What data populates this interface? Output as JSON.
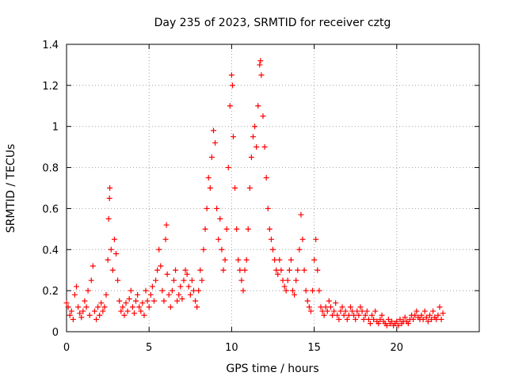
{
  "chart_data": {
    "type": "scatter",
    "title": "Day 235 of 2023, SRMTID for receiver cztg",
    "xlabel": "GPS time / hours",
    "ylabel": "SRMTID / TECUs",
    "xlim": [
      0,
      25
    ],
    "ylim": [
      0,
      1.4
    ],
    "xticks": [
      0,
      5,
      10,
      15,
      20
    ],
    "xtick_labels": [
      "0",
      "5",
      "10",
      "15",
      "20"
    ],
    "yticks": [
      0,
      0.2,
      0.4,
      0.6,
      0.8,
      1,
      1.2,
      1.4
    ],
    "ytick_labels": [
      "0",
      "0.2",
      "0.4",
      "0.6",
      "0.8",
      "1",
      "1.2",
      "1.4"
    ],
    "grid": true,
    "marker": "plus",
    "color": "#ff0000",
    "series": [
      {
        "name": "SRMTID",
        "points": [
          [
            0.0,
            0.14
          ],
          [
            0.1,
            0.12
          ],
          [
            0.2,
            0.08
          ],
          [
            0.3,
            0.1
          ],
          [
            0.4,
            0.06
          ],
          [
            0.5,
            0.18
          ],
          [
            0.6,
            0.22
          ],
          [
            0.7,
            0.12
          ],
          [
            0.8,
            0.09
          ],
          [
            0.9,
            0.07
          ],
          [
            1.0,
            0.1
          ],
          [
            1.1,
            0.15
          ],
          [
            1.2,
            0.12
          ],
          [
            1.3,
            0.2
          ],
          [
            1.4,
            0.08
          ],
          [
            1.5,
            0.25
          ],
          [
            1.6,
            0.32
          ],
          [
            1.7,
            0.1
          ],
          [
            1.8,
            0.06
          ],
          [
            1.9,
            0.12
          ],
          [
            2.0,
            0.08
          ],
          [
            2.1,
            0.14
          ],
          [
            2.2,
            0.1
          ],
          [
            2.3,
            0.12
          ],
          [
            2.4,
            0.18
          ],
          [
            2.5,
            0.35
          ],
          [
            2.55,
            0.55
          ],
          [
            2.6,
            0.65
          ],
          [
            2.62,
            0.7
          ],
          [
            2.7,
            0.4
          ],
          [
            2.8,
            0.3
          ],
          [
            2.9,
            0.45
          ],
          [
            3.0,
            0.38
          ],
          [
            3.1,
            0.25
          ],
          [
            3.2,
            0.15
          ],
          [
            3.3,
            0.1
          ],
          [
            3.4,
            0.12
          ],
          [
            3.5,
            0.08
          ],
          [
            3.6,
            0.14
          ],
          [
            3.7,
            0.1
          ],
          [
            3.8,
            0.16
          ],
          [
            3.9,
            0.2
          ],
          [
            4.0,
            0.12
          ],
          [
            4.1,
            0.09
          ],
          [
            4.2,
            0.15
          ],
          [
            4.3,
            0.18
          ],
          [
            4.4,
            0.12
          ],
          [
            4.5,
            0.1
          ],
          [
            4.6,
            0.14
          ],
          [
            4.7,
            0.08
          ],
          [
            4.8,
            0.2
          ],
          [
            4.9,
            0.15
          ],
          [
            5.0,
            0.12
          ],
          [
            5.1,
            0.18
          ],
          [
            5.2,
            0.22
          ],
          [
            5.3,
            0.15
          ],
          [
            5.4,
            0.25
          ],
          [
            5.5,
            0.3
          ],
          [
            5.6,
            0.4
          ],
          [
            5.7,
            0.32
          ],
          [
            5.8,
            0.2
          ],
          [
            5.9,
            0.15
          ],
          [
            6.0,
            0.45
          ],
          [
            6.05,
            0.52
          ],
          [
            6.1,
            0.28
          ],
          [
            6.2,
            0.18
          ],
          [
            6.3,
            0.12
          ],
          [
            6.4,
            0.2
          ],
          [
            6.5,
            0.25
          ],
          [
            6.6,
            0.3
          ],
          [
            6.7,
            0.15
          ],
          [
            6.8,
            0.18
          ],
          [
            6.9,
            0.22
          ],
          [
            7.0,
            0.16
          ],
          [
            7.1,
            0.25
          ],
          [
            7.2,
            0.3
          ],
          [
            7.3,
            0.28
          ],
          [
            7.4,
            0.22
          ],
          [
            7.5,
            0.18
          ],
          [
            7.6,
            0.25
          ],
          [
            7.7,
            0.2
          ],
          [
            7.8,
            0.15
          ],
          [
            7.9,
            0.12
          ],
          [
            8.0,
            0.2
          ],
          [
            8.1,
            0.3
          ],
          [
            8.2,
            0.25
          ],
          [
            8.3,
            0.4
          ],
          [
            8.4,
            0.5
          ],
          [
            8.5,
            0.6
          ],
          [
            8.6,
            0.75
          ],
          [
            8.7,
            0.7
          ],
          [
            8.8,
            0.85
          ],
          [
            8.9,
            0.98
          ],
          [
            9.0,
            0.92
          ],
          [
            9.1,
            0.6
          ],
          [
            9.2,
            0.45
          ],
          [
            9.3,
            0.55
          ],
          [
            9.4,
            0.4
          ],
          [
            9.5,
            0.3
          ],
          [
            9.6,
            0.35
          ],
          [
            9.7,
            0.5
          ],
          [
            9.8,
            0.8
          ],
          [
            9.9,
            1.1
          ],
          [
            10.0,
            1.25
          ],
          [
            10.05,
            1.2
          ],
          [
            10.1,
            0.95
          ],
          [
            10.2,
            0.7
          ],
          [
            10.3,
            0.5
          ],
          [
            10.4,
            0.35
          ],
          [
            10.5,
            0.3
          ],
          [
            10.6,
            0.25
          ],
          [
            10.7,
            0.2
          ],
          [
            10.8,
            0.3
          ],
          [
            10.9,
            0.35
          ],
          [
            11.0,
            0.5
          ],
          [
            11.1,
            0.7
          ],
          [
            11.2,
            0.85
          ],
          [
            11.3,
            0.95
          ],
          [
            11.4,
            1.0
          ],
          [
            11.5,
            0.9
          ],
          [
            11.6,
            1.1
          ],
          [
            11.7,
            1.3
          ],
          [
            11.75,
            1.32
          ],
          [
            11.8,
            1.25
          ],
          [
            11.9,
            1.05
          ],
          [
            12.0,
            0.9
          ],
          [
            12.1,
            0.75
          ],
          [
            12.2,
            0.6
          ],
          [
            12.3,
            0.5
          ],
          [
            12.4,
            0.45
          ],
          [
            12.5,
            0.4
          ],
          [
            12.6,
            0.35
          ],
          [
            12.7,
            0.3
          ],
          [
            12.8,
            0.28
          ],
          [
            12.9,
            0.35
          ],
          [
            13.0,
            0.3
          ],
          [
            13.1,
            0.25
          ],
          [
            13.2,
            0.22
          ],
          [
            13.3,
            0.2
          ],
          [
            13.4,
            0.25
          ],
          [
            13.5,
            0.3
          ],
          [
            13.6,
            0.35
          ],
          [
            13.7,
            0.2
          ],
          [
            13.8,
            0.18
          ],
          [
            13.9,
            0.25
          ],
          [
            14.0,
            0.3
          ],
          [
            14.1,
            0.4
          ],
          [
            14.2,
            0.57
          ],
          [
            14.3,
            0.45
          ],
          [
            14.4,
            0.3
          ],
          [
            14.5,
            0.2
          ],
          [
            14.6,
            0.15
          ],
          [
            14.7,
            0.12
          ],
          [
            14.8,
            0.1
          ],
          [
            14.9,
            0.2
          ],
          [
            15.0,
            0.35
          ],
          [
            15.1,
            0.45
          ],
          [
            15.2,
            0.3
          ],
          [
            15.3,
            0.2
          ],
          [
            15.4,
            0.12
          ],
          [
            15.5,
            0.1
          ],
          [
            15.6,
            0.08
          ],
          [
            15.7,
            0.12
          ],
          [
            15.8,
            0.1
          ],
          [
            15.9,
            0.15
          ],
          [
            16.0,
            0.12
          ],
          [
            16.1,
            0.08
          ],
          [
            16.2,
            0.1
          ],
          [
            16.3,
            0.14
          ],
          [
            16.4,
            0.08
          ],
          [
            16.5,
            0.06
          ],
          [
            16.6,
            0.1
          ],
          [
            16.7,
            0.12
          ],
          [
            16.8,
            0.08
          ],
          [
            16.9,
            0.1
          ],
          [
            17.0,
            0.06
          ],
          [
            17.1,
            0.08
          ],
          [
            17.2,
            0.12
          ],
          [
            17.3,
            0.1
          ],
          [
            17.4,
            0.08
          ],
          [
            17.5,
            0.06
          ],
          [
            17.6,
            0.1
          ],
          [
            17.7,
            0.08
          ],
          [
            17.8,
            0.12
          ],
          [
            17.9,
            0.1
          ],
          [
            18.0,
            0.06
          ],
          [
            18.1,
            0.08
          ],
          [
            18.2,
            0.1
          ],
          [
            18.3,
            0.06
          ],
          [
            18.4,
            0.04
          ],
          [
            18.5,
            0.08
          ],
          [
            18.6,
            0.06
          ],
          [
            18.7,
            0.1
          ],
          [
            18.8,
            0.05
          ],
          [
            18.9,
            0.04
          ],
          [
            19.0,
            0.06
          ],
          [
            19.1,
            0.08
          ],
          [
            19.2,
            0.05
          ],
          [
            19.3,
            0.04
          ],
          [
            19.4,
            0.03
          ],
          [
            19.5,
            0.06
          ],
          [
            19.6,
            0.04
          ],
          [
            19.7,
            0.05
          ],
          [
            19.8,
            0.03
          ],
          [
            19.9,
            0.04
          ],
          [
            20.0,
            0.05
          ],
          [
            20.1,
            0.03
          ],
          [
            20.2,
            0.06
          ],
          [
            20.3,
            0.04
          ],
          [
            20.4,
            0.05
          ],
          [
            20.5,
            0.07
          ],
          [
            20.6,
            0.05
          ],
          [
            20.7,
            0.04
          ],
          [
            20.8,
            0.06
          ],
          [
            20.9,
            0.08
          ],
          [
            21.0,
            0.06
          ],
          [
            21.1,
            0.08
          ],
          [
            21.2,
            0.1
          ],
          [
            21.3,
            0.07
          ],
          [
            21.4,
            0.06
          ],
          [
            21.5,
            0.08
          ],
          [
            21.6,
            0.06
          ],
          [
            21.7,
            0.1
          ],
          [
            21.8,
            0.07
          ],
          [
            21.9,
            0.05
          ],
          [
            22.0,
            0.08
          ],
          [
            22.1,
            0.06
          ],
          [
            22.2,
            0.1
          ],
          [
            22.3,
            0.07
          ],
          [
            22.4,
            0.06
          ],
          [
            22.5,
            0.08
          ],
          [
            22.6,
            0.12
          ],
          [
            22.7,
            0.06
          ],
          [
            22.8,
            0.09
          ]
        ]
      }
    ]
  }
}
